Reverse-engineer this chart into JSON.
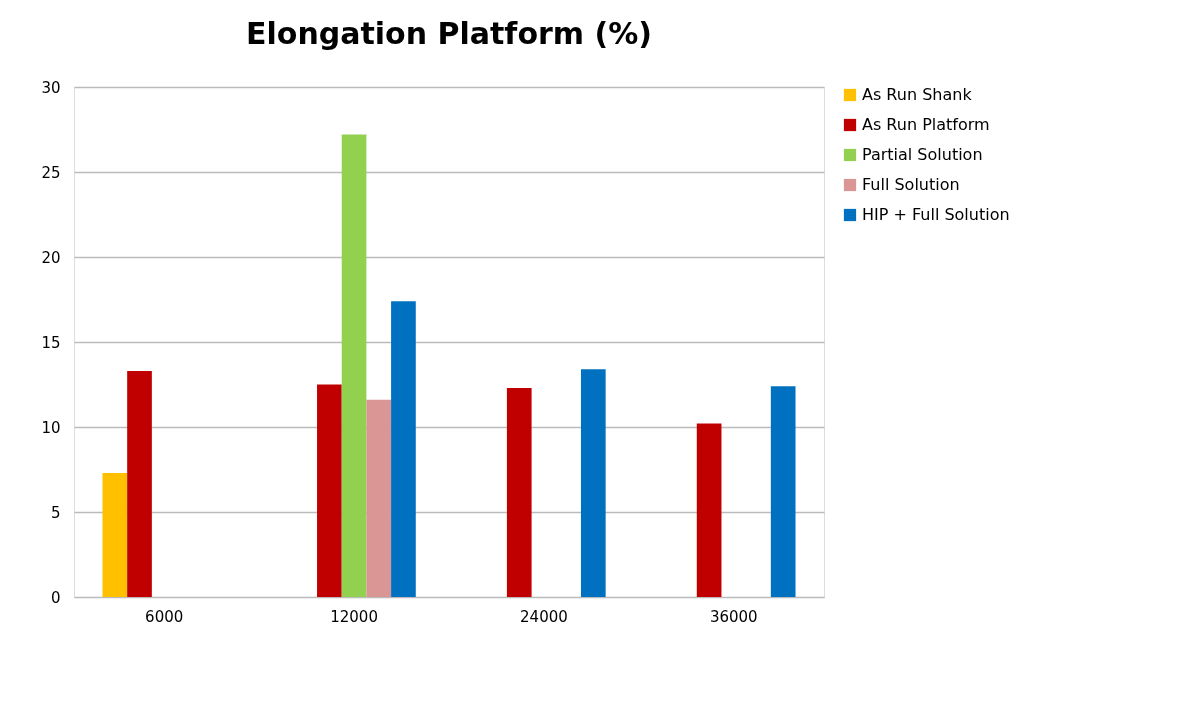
{
  "chart_data": {
    "type": "bar",
    "title": "Elongation Platform (%)",
    "categories": [
      "6000",
      "12000",
      "24000",
      "36000"
    ],
    "series": [
      {
        "name": "As Run Shank",
        "color": "#ffc000",
        "values": [
          7.3,
          null,
          null,
          null
        ]
      },
      {
        "name": "As Run Platform",
        "color": "#c00000",
        "values": [
          13.3,
          12.5,
          12.3,
          10.2
        ]
      },
      {
        "name": "Partial Solution",
        "color": "#92d050",
        "values": [
          null,
          27.2,
          null,
          null
        ]
      },
      {
        "name": "Full Solution",
        "color": "#d99694",
        "values": [
          null,
          11.6,
          null,
          null
        ]
      },
      {
        "name": "HIP + Full Solution",
        "color": "#0070c0",
        "values": [
          null,
          17.4,
          13.4,
          12.4
        ]
      }
    ],
    "ylim": [
      0,
      30
    ],
    "yticks": [
      0,
      5,
      10,
      15,
      20,
      25,
      30
    ],
    "grid": "y",
    "legend": "right"
  }
}
